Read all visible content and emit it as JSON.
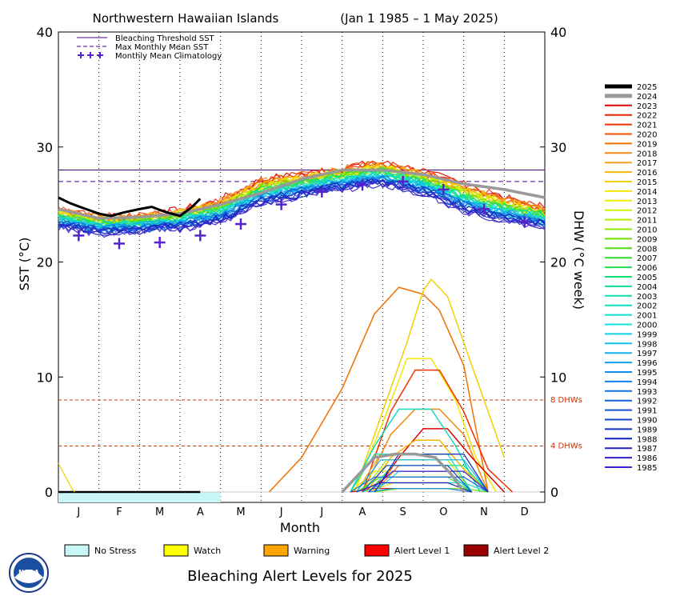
{
  "title": "Northwestern Hawaiian Islands",
  "date_range": "(Jan 1 1985 – 1 May 2025)",
  "bottom_title": "Bleaching Alert Levels for 2025",
  "noaa_logo_text": "NOAA",
  "legend_top": [
    {
      "label": "Bleaching Threshold SST",
      "color": "#4b0082",
      "style": "solid"
    },
    {
      "label": "Max Monthly Mean SST",
      "color": "#4b0082",
      "style": "dashed"
    },
    {
      "label": "Monthly Mean Climatology",
      "color": "#5522cc",
      "style": "plus"
    }
  ],
  "alert_legend": [
    {
      "label": "No Stress",
      "color": "#c8f5f5"
    },
    {
      "label": "Watch",
      "color": "#ffff00"
    },
    {
      "label": "Warning",
      "color": "#ffa500"
    },
    {
      "label": "Alert Level 1",
      "color": "#ff0000"
    },
    {
      "label": "Alert Level 2",
      "color": "#990000"
    }
  ],
  "year_legend": [
    {
      "year": "2025",
      "color": "#000000"
    },
    {
      "year": "2024",
      "color": "#999999"
    },
    {
      "year": "2023",
      "color": "#dd0000"
    },
    {
      "year": "2022",
      "color": "#e82200"
    },
    {
      "year": "2021",
      "color": "#ee3300"
    },
    {
      "year": "2020",
      "color": "#f05000"
    },
    {
      "year": "2019",
      "color": "#f07000"
    },
    {
      "year": "2018",
      "color": "#f08a10"
    },
    {
      "year": "2017",
      "color": "#f5a020"
    },
    {
      "year": "2016",
      "color": "#f5b800"
    },
    {
      "year": "2015",
      "color": "#f5d000"
    },
    {
      "year": "2014",
      "color": "#f5e800"
    },
    {
      "year": "2013",
      "color": "#e8f000"
    },
    {
      "year": "2012",
      "color": "#d0f000"
    },
    {
      "year": "2011",
      "color": "#b0ee00"
    },
    {
      "year": "2010",
      "color": "#90e800"
    },
    {
      "year": "2009",
      "color": "#70e000"
    },
    {
      "year": "2008",
      "color": "#50dd10"
    },
    {
      "year": "2007",
      "color": "#30dd30"
    },
    {
      "year": "2006",
      "color": "#20dd50"
    },
    {
      "year": "2005",
      "color": "#10dd70"
    },
    {
      "year": "2004",
      "color": "#10dd90"
    },
    {
      "year": "2003",
      "color": "#10ddaa"
    },
    {
      "year": "2002",
      "color": "#10ddc0"
    },
    {
      "year": "2001",
      "color": "#10e0d0"
    },
    {
      "year": "2000",
      "color": "#10e0e0"
    },
    {
      "year": "1999",
      "color": "#10d0e8"
    },
    {
      "year": "1998",
      "color": "#10c0ee"
    },
    {
      "year": "1997",
      "color": "#10b0ee"
    },
    {
      "year": "1996",
      "color": "#10a0ee"
    },
    {
      "year": "1995",
      "color": "#1090ee"
    },
    {
      "year": "1994",
      "color": "#1080e8"
    },
    {
      "year": "1993",
      "color": "#1070e0"
    },
    {
      "year": "1992",
      "color": "#1060d8"
    },
    {
      "year": "1991",
      "color": "#1050d0"
    },
    {
      "year": "1990",
      "color": "#1040c8"
    },
    {
      "year": "1989",
      "color": "#1030c0"
    },
    {
      "year": "1988",
      "color": "#1020c0"
    },
    {
      "year": "1987",
      "color": "#2020c0"
    },
    {
      "year": "1986",
      "color": "#3020c8"
    },
    {
      "year": "1985",
      "color": "#4020d0"
    }
  ],
  "chart_data": {
    "type": "line",
    "xlabel": "Month",
    "ylabel_left": "SST (°C)",
    "ylabel_right": "DHW (°C week)",
    "ylim": [
      0,
      40
    ],
    "yticks": [
      0,
      10,
      20,
      30,
      40
    ],
    "months": [
      "J",
      "F",
      "M",
      "A",
      "M",
      "J",
      "J",
      "A",
      "S",
      "O",
      "N",
      "D"
    ],
    "bleaching_threshold_sst": 28.0,
    "max_monthly_mean_sst": 27.0,
    "dhw_reference_lines": [
      {
        "value": 8,
        "label": "8 DHWs",
        "color": "#cc3300"
      },
      {
        "value": 4,
        "label": "4 DHWs",
        "color": "#cc3300"
      }
    ],
    "monthly_mean_climatology": [
      {
        "month": "J",
        "sst": 22.3
      },
      {
        "month": "F",
        "sst": 21.6
      },
      {
        "month": "M",
        "sst": 21.7
      },
      {
        "month": "A",
        "sst": 22.3
      },
      {
        "month": "M",
        "sst": 23.3
      },
      {
        "month": "J",
        "sst": 25.0
      },
      {
        "month": "J",
        "sst": 26.1
      },
      {
        "month": "A",
        "sst": 26.7
      },
      {
        "month": "S",
        "sst": 27.0
      },
      {
        "month": "O",
        "sst": 26.3
      },
      {
        "month": "N",
        "sst": 24.6
      },
      {
        "month": "D",
        "sst": 23.5
      }
    ],
    "sst_2025": {
      "x_month": [
        0.0,
        0.3,
        0.6,
        1.0,
        1.3,
        1.6,
        2.0,
        2.3,
        2.6,
        3.0,
        3.3,
        3.5
      ],
      "sst": [
        25.6,
        25.1,
        24.7,
        24.2,
        24.0,
        24.3,
        24.6,
        24.8,
        24.4,
        24.0,
        24.8,
        25.5
      ]
    },
    "sst_2024": {
      "x_month": [
        0.0,
        1.0,
        2.0,
        3.0,
        4.0,
        5.0,
        6.0,
        7.0,
        8.0,
        9.0,
        10.0,
        11.0,
        12.0
      ],
      "sst": [
        24.6,
        23.8,
        23.9,
        24.2,
        25.0,
        26.0,
        27.2,
        28.0,
        28.0,
        27.6,
        26.8,
        26.3,
        25.6
      ]
    },
    "sst_envelope_upper": {
      "x_month": [
        0,
        1,
        2,
        3,
        4,
        5,
        6,
        7,
        8,
        9,
        10,
        11,
        12
      ],
      "sst": [
        24.8,
        24.3,
        24.3,
        24.8,
        25.8,
        27.6,
        28.0,
        28.6,
        29.0,
        28.2,
        27.2,
        26.0,
        25.0
      ]
    },
    "sst_envelope_lower": {
      "x_month": [
        0,
        1,
        2,
        3,
        4,
        5,
        6,
        7,
        8,
        9,
        10,
        11,
        12
      ],
      "sst": [
        22.8,
        22.2,
        22.4,
        22.6,
        23.2,
        24.6,
        25.4,
        26.0,
        26.4,
        25.6,
        24.0,
        23.2,
        22.8
      ]
    },
    "dhw_2025": {
      "x_month": [
        0.0,
        3.5
      ],
      "dhw": [
        0,
        0
      ]
    },
    "dhw_2024": {
      "x_month": [
        7.0,
        7.4,
        7.8,
        8.3,
        8.8,
        9.3,
        9.7,
        10.0
      ],
      "dhw": [
        0,
        1.5,
        3.0,
        3.3,
        3.3,
        3.0,
        1.5,
        0
      ]
    },
    "dhw_notable": [
      {
        "year": "2019",
        "x_month": [
          5.2,
          6.0,
          7.0,
          7.8,
          8.4,
          9.0,
          9.4,
          10.0,
          10.6
        ],
        "dhw": [
          0,
          3.0,
          9.0,
          15.5,
          17.8,
          17.2,
          15.8,
          11.0,
          0
        ]
      },
      {
        "year": "2015",
        "x_month": [
          7.3,
          8.0,
          8.6,
          9.0,
          9.2,
          9.6,
          10.0,
          10.6,
          11.0
        ],
        "dhw": [
          0,
          7.0,
          13.0,
          17.5,
          18.5,
          17.0,
          13.0,
          7.0,
          3.0
        ]
      },
      {
        "year": "2014",
        "x_month": [
          7.3,
          8.0,
          8.6,
          9.2,
          9.8,
          10.3,
          10.8
        ],
        "dhw": [
          0,
          6.0,
          11.6,
          11.6,
          8.0,
          3.0,
          0
        ]
      },
      {
        "year": "2021",
        "x_month": [
          7.5,
          8.2,
          8.8,
          9.4,
          10.0,
          10.6,
          11.2
        ],
        "dhw": [
          0,
          7.0,
          10.6,
          10.6,
          7.0,
          2.0,
          0
        ]
      },
      {
        "year": "2018",
        "x_month": [
          7.5,
          8.2,
          8.8,
          9.4,
          10.0,
          10.6
        ],
        "dhw": [
          0,
          5.0,
          7.2,
          7.2,
          5.0,
          0
        ]
      },
      {
        "year": "2023",
        "x_month": [
          7.8,
          8.4,
          9.0,
          9.6,
          10.2,
          11.0
        ],
        "dhw": [
          0,
          3.0,
          5.5,
          5.5,
          3.0,
          0
        ]
      },
      {
        "year": "2002",
        "x_month": [
          7.2,
          7.8,
          8.4,
          9.2,
          9.8,
          10.4
        ],
        "dhw": [
          0,
          4.0,
          7.2,
          7.2,
          4.0,
          0
        ]
      },
      {
        "year": "2016",
        "x_month": [
          7.6,
          8.2,
          8.8,
          9.4,
          10.0,
          10.6
        ],
        "dhw": [
          0,
          3.0,
          4.5,
          4.5,
          2.0,
          0
        ]
      }
    ]
  }
}
